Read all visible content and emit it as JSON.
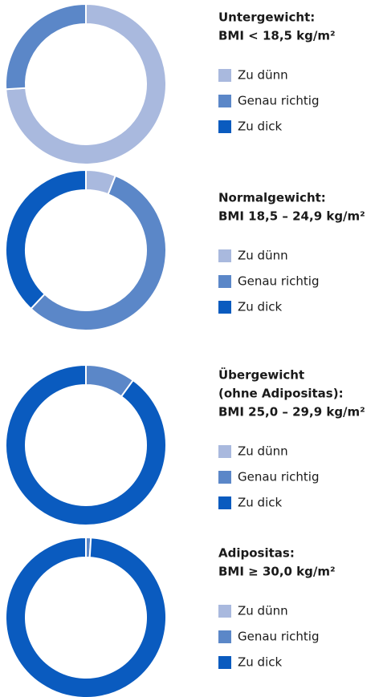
{
  "chart_data": [
    {
      "type": "donut",
      "title": [
        "Untergewicht:",
        "BMI < 18,5 kg/m²"
      ],
      "categories": [
        "Zu dünn",
        "Genau richtig",
        "Zu dick"
      ],
      "colors": [
        "#a9b9de",
        "#5b87c8",
        "#0a5bbf"
      ],
      "values": [
        74,
        26,
        0
      ]
    },
    {
      "type": "donut",
      "title": [
        "Normalgewicht:",
        "BMI 18,5 – 24,9 kg/m²"
      ],
      "categories": [
        "Zu dünn",
        "Genau richtig",
        "Zu dick"
      ],
      "colors": [
        "#a9b9de",
        "#5b87c8",
        "#0a5bbf"
      ],
      "values": [
        6,
        56,
        38
      ]
    },
    {
      "type": "donut",
      "title": [
        "Übergewicht",
        "(ohne Adipositas):",
        "BMI 25,0 – 29,9 kg/m²"
      ],
      "categories": [
        "Zu dünn",
        "Genau richtig",
        "Zu dick"
      ],
      "colors": [
        "#a9b9de",
        "#5b87c8",
        "#0a5bbf"
      ],
      "values": [
        0,
        10,
        90
      ]
    },
    {
      "type": "donut",
      "title": [
        "Adipositas:",
        "BMI ≥ 30,0 kg/m²"
      ],
      "categories": [
        "Zu dünn",
        "Genau richtig",
        "Zu dick"
      ],
      "colors": [
        "#a9b9de",
        "#5b87c8",
        "#0a5bbf"
      ],
      "values": [
        0,
        1,
        99
      ]
    }
  ]
}
